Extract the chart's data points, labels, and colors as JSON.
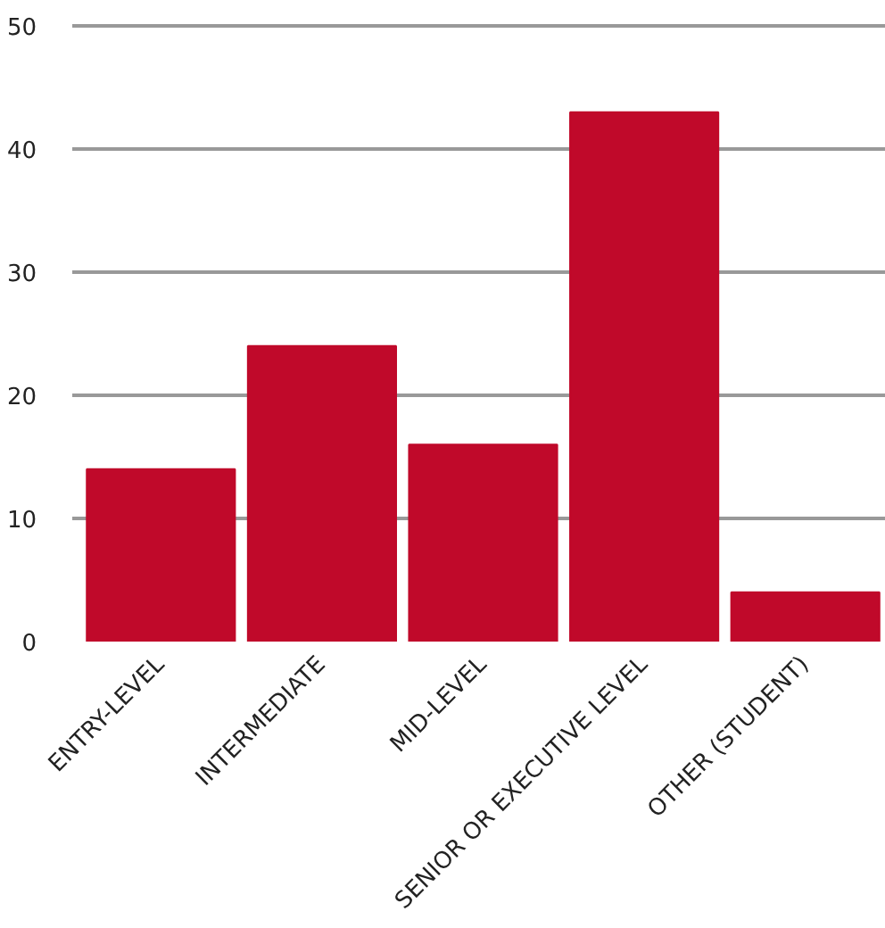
{
  "chart_data": {
    "type": "bar",
    "categories": [
      "ENTRY-LEVEL",
      "INTERMEDIATE",
      "MID-LEVEL",
      "SENIOR OR EXECUTIVE LEVEL",
      "OTHER (STUDENT)"
    ],
    "values": [
      14,
      24,
      16,
      43,
      4
    ],
    "color": "#c0092a",
    "ylim": [
      0,
      50
    ],
    "yticks": [
      0,
      10,
      20,
      30,
      40,
      50
    ],
    "grid": "y"
  }
}
